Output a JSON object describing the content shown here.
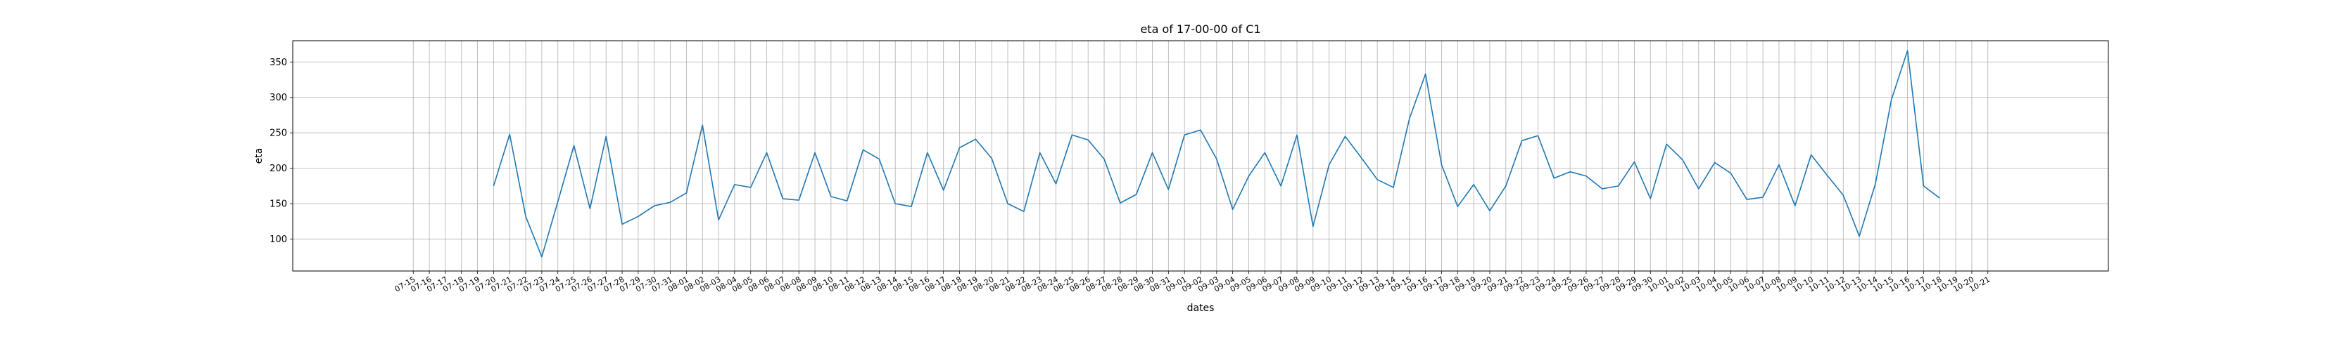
{
  "chart_data": {
    "type": "line",
    "title": "eta of 17-00-00 of C1",
    "xlabel": "dates",
    "ylabel": "eta",
    "ylim": [
      55,
      380
    ],
    "yticks": [
      100,
      150,
      200,
      250,
      300,
      350
    ],
    "grid": true,
    "legend": "none",
    "color": "#1f77b4",
    "x": [
      "07-15",
      "07-16",
      "07-17",
      "07-18",
      "07-19",
      "07-20",
      "07-21",
      "07-22",
      "07-23",
      "07-24",
      "07-25",
      "07-26",
      "07-27",
      "07-28",
      "07-29",
      "07-30",
      "07-31",
      "08-01",
      "08-02",
      "08-03",
      "08-04",
      "08-05",
      "08-06",
      "08-07",
      "08-08",
      "08-09",
      "08-10",
      "08-11",
      "08-12",
      "08-13",
      "08-14",
      "08-15",
      "08-16",
      "08-17",
      "08-18",
      "08-19",
      "08-20",
      "08-21",
      "08-22",
      "08-23",
      "08-24",
      "08-25",
      "08-26",
      "08-27",
      "08-28",
      "08-29",
      "08-30",
      "08-31",
      "09-01",
      "09-02",
      "09-03",
      "09-04",
      "09-05",
      "09-06",
      "09-07",
      "09-08",
      "09-09",
      "09-10",
      "09-11",
      "09-12",
      "09-13",
      "09-14",
      "09-15",
      "09-16",
      "09-17",
      "09-18",
      "09-19",
      "09-20",
      "09-21",
      "09-22",
      "09-23",
      "09-24",
      "09-25",
      "09-26",
      "09-27",
      "09-28",
      "09-29",
      "09-30",
      "10-01",
      "10-02",
      "10-03",
      "10-04",
      "10-05",
      "10-06",
      "10-07",
      "10-08",
      "10-09",
      "10-10",
      "10-11",
      "10-12",
      "10-13",
      "10-14",
      "10-15",
      "10-16",
      "10-17",
      "10-18",
      "10-19",
      "10-20",
      "10-21"
    ],
    "values": [
      null,
      null,
      null,
      null,
      null,
      175,
      248,
      132,
      75,
      153,
      232,
      143,
      245,
      121,
      132,
      147,
      152,
      165,
      261,
      127,
      177,
      173,
      222,
      157,
      155,
      222,
      160,
      154,
      226,
      213,
      150,
      146,
      222,
      169,
      229,
      241,
      214,
      150,
      139,
      222,
      178,
      247,
      240,
      213,
      151,
      163,
      222,
      170,
      247,
      254,
      213,
      142,
      189,
      222,
      175,
      247,
      118,
      205,
      245,
      215,
      184,
      173,
      270,
      333,
      205,
      146,
      177,
      140,
      175,
      239,
      246,
      186,
      195,
      189,
      171,
      175,
      209,
      157,
      234,
      212,
      171,
      208,
      193,
      156,
      159,
      205,
      147,
      219,
      190,
      162,
      104,
      178,
      297,
      366,
      175,
      158,
      null,
      null,
      null
    ]
  }
}
